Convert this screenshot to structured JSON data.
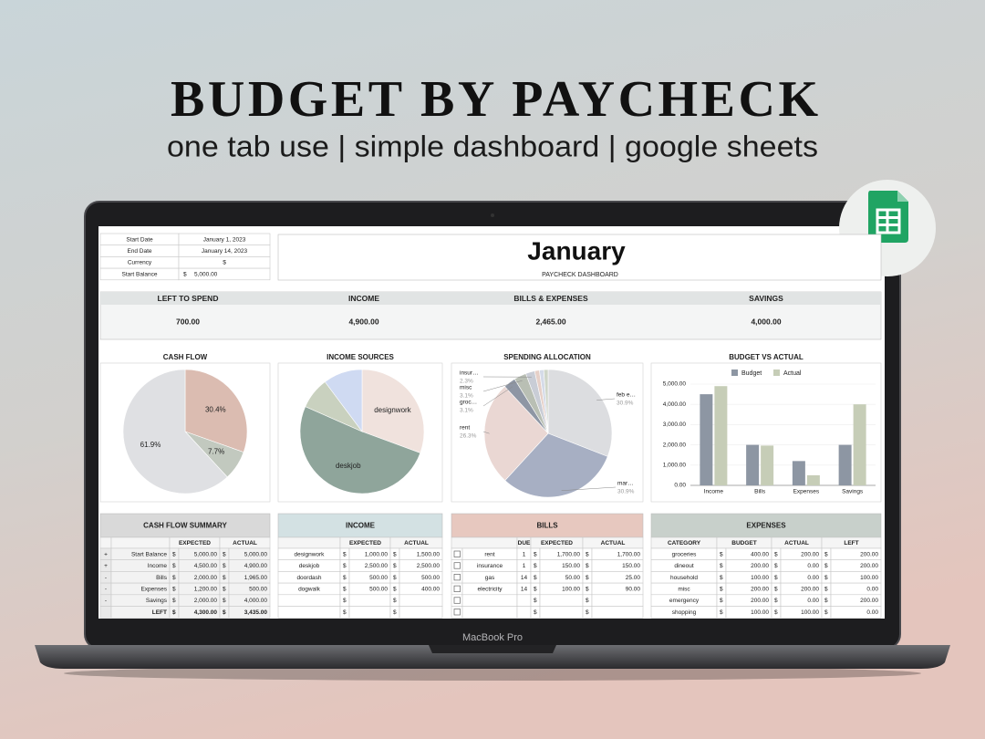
{
  "header": {
    "title": "BUDGET BY PAYCHECK",
    "subtitle": "one tab use | simple dashboard | google sheets"
  },
  "device_label": "MacBook Pro",
  "info": {
    "rows": [
      [
        "Start Date",
        "January 1, 2023"
      ],
      [
        "End Date",
        "January 14, 2023"
      ],
      [
        "Currency",
        "$"
      ],
      [
        "Start Balance",
        "$",
        "5,000.00"
      ]
    ]
  },
  "month": "January",
  "dashboard_label": "PAYCHECK DASHBOARD",
  "summary": [
    {
      "label": "LEFT TO SPEND",
      "value": "700.00"
    },
    {
      "label": "INCOME",
      "value": "4,900.00"
    },
    {
      "label": "BILLS & EXPENSES",
      "value": "2,465.00"
    },
    {
      "label": "SAVINGS",
      "value": "4,000.00"
    }
  ],
  "charts": [
    {
      "type": "pie",
      "title": "CASH FLOW",
      "values": [
        30.4,
        7.7,
        61.9
      ],
      "value_labels": [
        "30.4%",
        "7.7%",
        "61.9%"
      ],
      "colors": [
        "#dbbcb1",
        "#c2c9bf",
        "#dfe0e3"
      ]
    },
    {
      "type": "pie",
      "title": "INCOME SOURCES",
      "labels": [
        "designwork",
        "deskjob",
        null,
        null
      ],
      "values": [
        30.6,
        51.0,
        8.2,
        10.2
      ],
      "colors": [
        "#f0e2dd",
        "#8fa59b",
        "#c9d1bf",
        "#cfdaf2"
      ]
    },
    {
      "type": "pie",
      "title": "SPENDING ALLOCATION",
      "labels": [
        "feb e…",
        "mar…",
        "rent",
        "groc…",
        "misc",
        "insur…",
        null,
        null,
        null
      ],
      "values": [
        30.9,
        30.9,
        26.3,
        3.1,
        3.1,
        2.3,
        1.2,
        1.1,
        1.1
      ],
      "value_labels": [
        "30.9%",
        "30.9%",
        "26.3%",
        "3.1%",
        "3.1%",
        "2.3%",
        null,
        null,
        null
      ],
      "colors": [
        "#dcdde0",
        "#a7afc3",
        "#ead7d3",
        "#8e96a4",
        "#b9bfb4",
        "#c9cdd6",
        "#e6d0c8",
        "#d5dbe8",
        "#cfd6c9"
      ]
    },
    {
      "type": "bar",
      "title": "BUDGET VS ACTUAL",
      "categories": [
        "Income",
        "Bills",
        "Expenses",
        "Savings"
      ],
      "series": [
        {
          "name": "Budget",
          "color": "#8d96a3",
          "values": [
            4500,
            2000,
            1200,
            2000
          ]
        },
        {
          "name": "Actual",
          "color": "#c6cdb7",
          "values": [
            4900,
            1965,
            500,
            4000
          ]
        }
      ],
      "ylim": [
        0,
        5000
      ],
      "yticks": [
        {
          "value": 0,
          "label": "0.00"
        },
        {
          "value": 1000,
          "label": "1,000.00"
        },
        {
          "value": 2000,
          "label": "2,000.00"
        },
        {
          "value": 3000,
          "label": "3,000.00"
        },
        {
          "value": 4000,
          "label": "4,000.00"
        },
        {
          "value": 5000,
          "label": "5,000.00"
        }
      ],
      "grid": true,
      "legend": "top"
    }
  ],
  "tables": [
    {
      "title": "CASH FLOW SUMMARY",
      "header": [
        null,
        null,
        "EXPECTED",
        "ACTUAL"
      ],
      "rows": [
        [
          "+",
          "Start Balance",
          "$",
          "5,000.00",
          "$",
          "5,000.00"
        ],
        [
          "+",
          "Income",
          "$",
          "4,500.00",
          "$",
          "4,900.00"
        ],
        [
          "-",
          "Bills",
          "$",
          "2,000.00",
          "$",
          "1,965.00"
        ],
        [
          "-",
          "Expenses",
          "$",
          "1,200.00",
          "$",
          "500.00"
        ],
        [
          "-",
          "Savings",
          "$",
          "2,000.00",
          "$",
          "4,000.00"
        ],
        [
          null,
          "LEFT",
          "$",
          "4,300.00",
          "$",
          "3,435.00"
        ]
      ]
    },
    {
      "title": "INCOME",
      "header": [
        null,
        "EXPECTED",
        "ACTUAL"
      ],
      "rows": [
        [
          "designwork",
          "$",
          "1,000.00",
          "$",
          "1,500.00"
        ],
        [
          "deskjob",
          "$",
          "2,500.00",
          "$",
          "2,500.00"
        ],
        [
          "doordash",
          "$",
          "500.00",
          "$",
          "500.00"
        ],
        [
          "dogwalk",
          "$",
          "500.00",
          "$",
          "400.00"
        ],
        [
          null,
          "$",
          null,
          "$",
          null
        ],
        [
          null,
          "$",
          null,
          "$",
          null
        ]
      ]
    },
    {
      "title": "BILLS",
      "header": [
        null,
        "DUE",
        "EXPECTED",
        "ACTUAL"
      ],
      "rows": [
        [
          "rent",
          "1",
          "$",
          "1,700.00",
          "$",
          "1,700.00"
        ],
        [
          "insurance",
          "1",
          "$",
          "150.00",
          "$",
          "150.00"
        ],
        [
          "gas",
          "14",
          "$",
          "50.00",
          "$",
          "25.00"
        ],
        [
          "electricity",
          "14",
          "$",
          "100.00",
          "$",
          "90.00"
        ],
        [
          null,
          null,
          "$",
          null,
          "$",
          null
        ],
        [
          null,
          null,
          "$",
          null,
          "$",
          null
        ]
      ]
    },
    {
      "title": "EXPENSES",
      "header": [
        "CATEGORY",
        "BUDGET",
        "ACTUAL",
        "LEFT"
      ],
      "rows": [
        [
          "groceries",
          "$",
          "400.00",
          "$",
          "200.00",
          "$",
          "200.00"
        ],
        [
          "dineout",
          "$",
          "200.00",
          "$",
          "0.00",
          "$",
          "200.00"
        ],
        [
          "household",
          "$",
          "100.00",
          "$",
          "0.00",
          "$",
          "100.00"
        ],
        [
          "misc",
          "$",
          "200.00",
          "$",
          "200.00",
          "$",
          "0.00"
        ],
        [
          "emergency",
          "$",
          "200.00",
          "$",
          "0.00",
          "$",
          "200.00"
        ],
        [
          "shopping",
          "$",
          "100.00",
          "$",
          "100.00",
          "$",
          "0.00"
        ]
      ]
    }
  ]
}
